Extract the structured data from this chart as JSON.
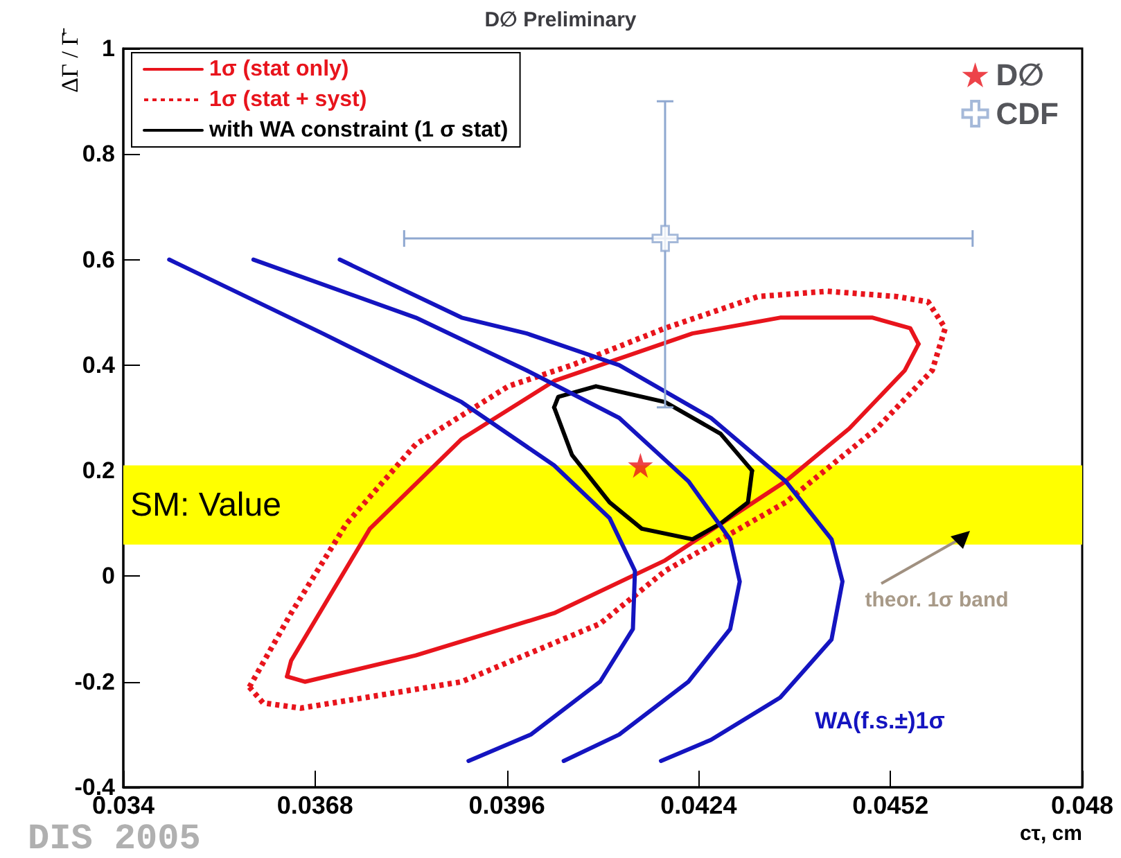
{
  "chart_data": {
    "type": "line",
    "title": "D∅ Preliminary",
    "xlabel": "cτ, cm",
    "ylabel": "ΔΓ / Γ̄",
    "xlim": [
      0.034,
      0.048
    ],
    "xticks": [
      0.034,
      0.0368,
      0.0396,
      0.0424,
      0.0452,
      0.048
    ],
    "ylim": [
      -0.4,
      1
    ],
    "yticks": [
      -0.4,
      -0.2,
      0,
      0.2,
      0.4,
      0.6,
      0.8,
      1
    ],
    "grid": false,
    "legend": "top",
    "marker": "none",
    "series": [
      {
        "name": "1σ (stat only)",
        "color": "#e8141c",
        "line_style": "solid",
        "x": [
          0.03639,
          0.03645,
          0.0376,
          0.03894,
          0.04029,
          0.04231,
          0.04359,
          0.04494,
          0.04549,
          0.04561
        ],
        "values": [
          -0.19,
          -0.16,
          0.09,
          0.26,
          0.37,
          0.46,
          0.49,
          0.49,
          0.47,
          0.44
        ]
      },
      {
        "color": "#e8141c",
        "line_style": "solid",
        "x": [
          0.03639,
          0.03665,
          0.03827,
          0.04029,
          0.04191,
          0.04367,
          0.0446,
          0.04541,
          0.04561
        ],
        "values": [
          -0.19,
          -0.2,
          -0.15,
          -0.07,
          0.03,
          0.18,
          0.28,
          0.39,
          0.44
        ]
      },
      {
        "name": "1σ (stat + syst)",
        "color": "#e8141c",
        "line_style": "dotted",
        "x": [
          0.03584,
          0.03645,
          0.03726,
          0.03827,
          0.03962,
          0.04055,
          0.04191,
          0.04327,
          0.04428,
          0.04529,
          0.04575,
          0.046
        ],
        "values": [
          -0.21,
          -0.07,
          0.1,
          0.25,
          0.36,
          0.4,
          0.47,
          0.53,
          0.54,
          0.53,
          0.52,
          0.47
        ]
      },
      {
        "color": "#e8141c",
        "line_style": "dotted",
        "x": [
          0.03584,
          0.03604,
          0.03659,
          0.03894,
          0.04096,
          0.04191,
          0.04367,
          0.045,
          0.04581,
          0.046
        ],
        "values": [
          -0.21,
          -0.24,
          -0.25,
          -0.2,
          -0.09,
          0.01,
          0.14,
          0.28,
          0.39,
          0.47
        ]
      },
      {
        "name": "with WA constraint (1 σ stat)",
        "color": "#000000",
        "line_style": "solid",
        "x": [
          0.04029,
          0.04035,
          0.0409,
          0.04191,
          0.04272,
          0.04318
        ],
        "values": [
          0.32,
          0.34,
          0.36,
          0.33,
          0.27,
          0.2
        ]
      },
      {
        "color": "#000000",
        "line_style": "solid",
        "x": [
          0.04029,
          0.04055,
          0.0411,
          0.04157,
          0.04231,
          0.04272,
          0.04312,
          0.04318
        ],
        "values": [
          0.32,
          0.23,
          0.14,
          0.09,
          0.07,
          0.1,
          0.14,
          0.2
        ]
      },
      {
        "color": "#1414c0",
        "line_style": "solid",
        "x": [
          0.03467,
          0.03691,
          0.03894,
          0.04029,
          0.0411,
          0.04147,
          0.04144,
          0.04096,
          0.03995,
          0.03904
        ],
        "values": [
          0.6,
          0.46,
          0.33,
          0.21,
          0.11,
          0.01,
          -0.1,
          -0.2,
          -0.3,
          -0.35
        ]
      },
      {
        "color": "#1414c0",
        "line_style": "solid",
        "x": [
          0.0359,
          0.03827,
          0.03989,
          0.04124,
          0.04225,
          0.04286,
          0.043,
          0.04286,
          0.04225,
          0.04124,
          0.04043
        ],
        "values": [
          0.6,
          0.49,
          0.39,
          0.3,
          0.18,
          0.07,
          -0.01,
          -0.1,
          -0.2,
          -0.3,
          -0.35
        ]
      },
      {
        "color": "#1414c0",
        "line_style": "solid",
        "x": [
          0.03716,
          0.03894,
          0.03989,
          0.04124,
          0.04258,
          0.04367,
          0.04434,
          0.0445,
          0.04434,
          0.04359,
          0.04258,
          0.04185
        ],
        "values": [
          0.6,
          0.49,
          0.46,
          0.4,
          0.3,
          0.18,
          0.07,
          -0.01,
          -0.12,
          -0.23,
          -0.31,
          -0.35
        ]
      },
      {
        "name": "D∅",
        "type": "scatter",
        "color": "#e8141c",
        "marker": "star",
        "x": [
          0.04155
        ],
        "values": [
          0.21
        ]
      },
      {
        "name": "CDF",
        "type": "scatter",
        "color": "#8fa8d0",
        "marker": "cross",
        "x": [
          0.04191
        ],
        "values": [
          0.64
        ],
        "errors": [
          [
            0.32,
            0.9
          ]
        ],
        "xerrors": [
          [
            0.0381,
            0.0464
          ]
        ]
      }
    ],
    "bands": [
      {
        "axis": "y",
        "from": 0.06,
        "to": 0.21,
        "label": "SM: Value",
        "color": "#ffff00"
      }
    ],
    "annotations": [
      "theor. 1σ band",
      "WA(f.s.±)1σ",
      "DIS 2005"
    ]
  }
}
